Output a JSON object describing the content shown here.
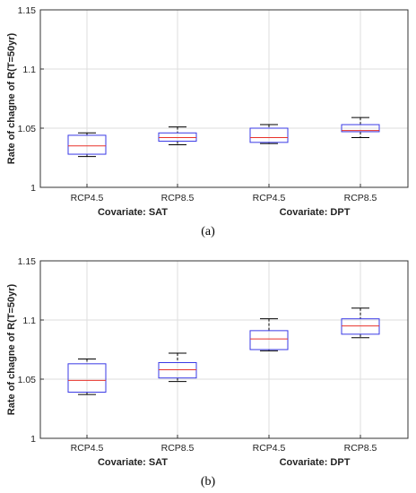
{
  "figure": {
    "panels": [
      {
        "caption": "(a)"
      },
      {
        "caption": "(b)"
      }
    ]
  },
  "colors": {
    "box": "#3a3ae6",
    "median": "#e8322a",
    "whisker": "#000000",
    "grid": "#dedede",
    "axis": "#333333"
  },
  "chart_data": [
    {
      "type": "box",
      "ylabel": "Rate of chagne of R(T=50yr)",
      "ylim": [
        1,
        1.15
      ],
      "yticks": [
        "1",
        "1.05",
        "1.1",
        "1.15"
      ],
      "ytick_values": [
        1,
        1.05,
        1.1,
        1.15
      ],
      "categories": [
        "RCP4.5",
        "RCP8.5",
        "RCP4.5",
        "RCP8.5"
      ],
      "groups": [
        {
          "label": "Covariate: SAT"
        },
        {
          "label": "Covariate: DPT"
        }
      ],
      "grid": true,
      "boxes": [
        {
          "min": 1.026,
          "q1": 1.028,
          "median": 1.035,
          "q3": 1.044,
          "max": 1.046
        },
        {
          "min": 1.036,
          "q1": 1.039,
          "median": 1.042,
          "q3": 1.046,
          "max": 1.051
        },
        {
          "min": 1.037,
          "q1": 1.038,
          "median": 1.042,
          "q3": 1.05,
          "max": 1.053
        },
        {
          "min": 1.042,
          "q1": 1.047,
          "median": 1.048,
          "q3": 1.053,
          "max": 1.059
        }
      ]
    },
    {
      "type": "box",
      "ylabel": "Rate of chagne of R(T=50yr)",
      "ylim": [
        1,
        1.15
      ],
      "yticks": [
        "1",
        "1.05",
        "1.1",
        "1.15"
      ],
      "ytick_values": [
        1,
        1.05,
        1.1,
        1.15
      ],
      "categories": [
        "RCP4.5",
        "RCP8.5",
        "RCP4.5",
        "RCP8.5"
      ],
      "groups": [
        {
          "label": "Covariate: SAT"
        },
        {
          "label": "Covariate: DPT"
        }
      ],
      "grid": true,
      "boxes": [
        {
          "min": 1.037,
          "q1": 1.039,
          "median": 1.049,
          "q3": 1.063,
          "max": 1.067
        },
        {
          "min": 1.048,
          "q1": 1.051,
          "median": 1.058,
          "q3": 1.064,
          "max": 1.072
        },
        {
          "min": 1.074,
          "q1": 1.075,
          "median": 1.084,
          "q3": 1.091,
          "max": 1.101
        },
        {
          "min": 1.085,
          "q1": 1.088,
          "median": 1.095,
          "q3": 1.101,
          "max": 1.11
        }
      ]
    }
  ]
}
